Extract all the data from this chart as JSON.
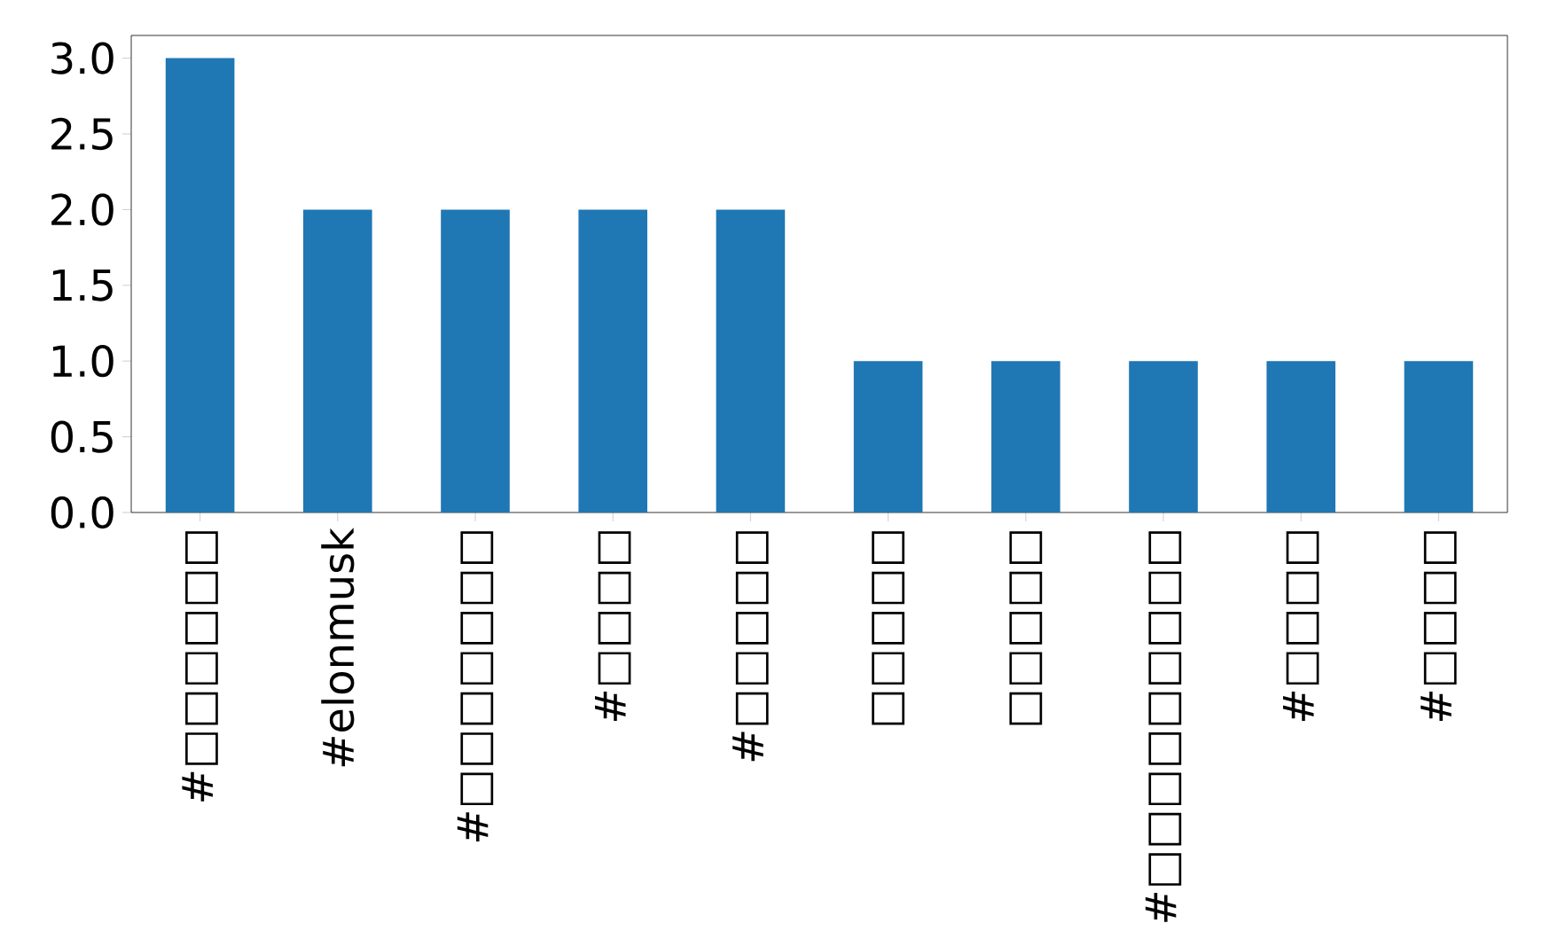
{
  "chart_data": {
    "type": "bar",
    "categories": [
      "#□□□□□□",
      "#elonmusk",
      "#□□□□□□□",
      "#□□□□",
      "#□□□□□",
      "□□□□□",
      "□□□□□",
      "#□□□□□□□□□",
      "#□□□□",
      "#□□□□"
    ],
    "values": [
      3,
      2,
      2,
      2,
      2,
      1,
      1,
      1,
      1,
      1
    ],
    "color": "#1f77b4",
    "ylim": [
      0,
      3.15
    ],
    "yticks": [
      {
        "value": 0,
        "label": "0.0"
      },
      {
        "value": 0.5,
        "label": "0.5"
      },
      {
        "value": 1,
        "label": "1.0"
      },
      {
        "value": 1.5,
        "label": "1.5"
      },
      {
        "value": 2,
        "label": "2.0"
      },
      {
        "value": 2.5,
        "label": "2.5"
      },
      {
        "value": 3,
        "label": "3.0"
      }
    ]
  }
}
